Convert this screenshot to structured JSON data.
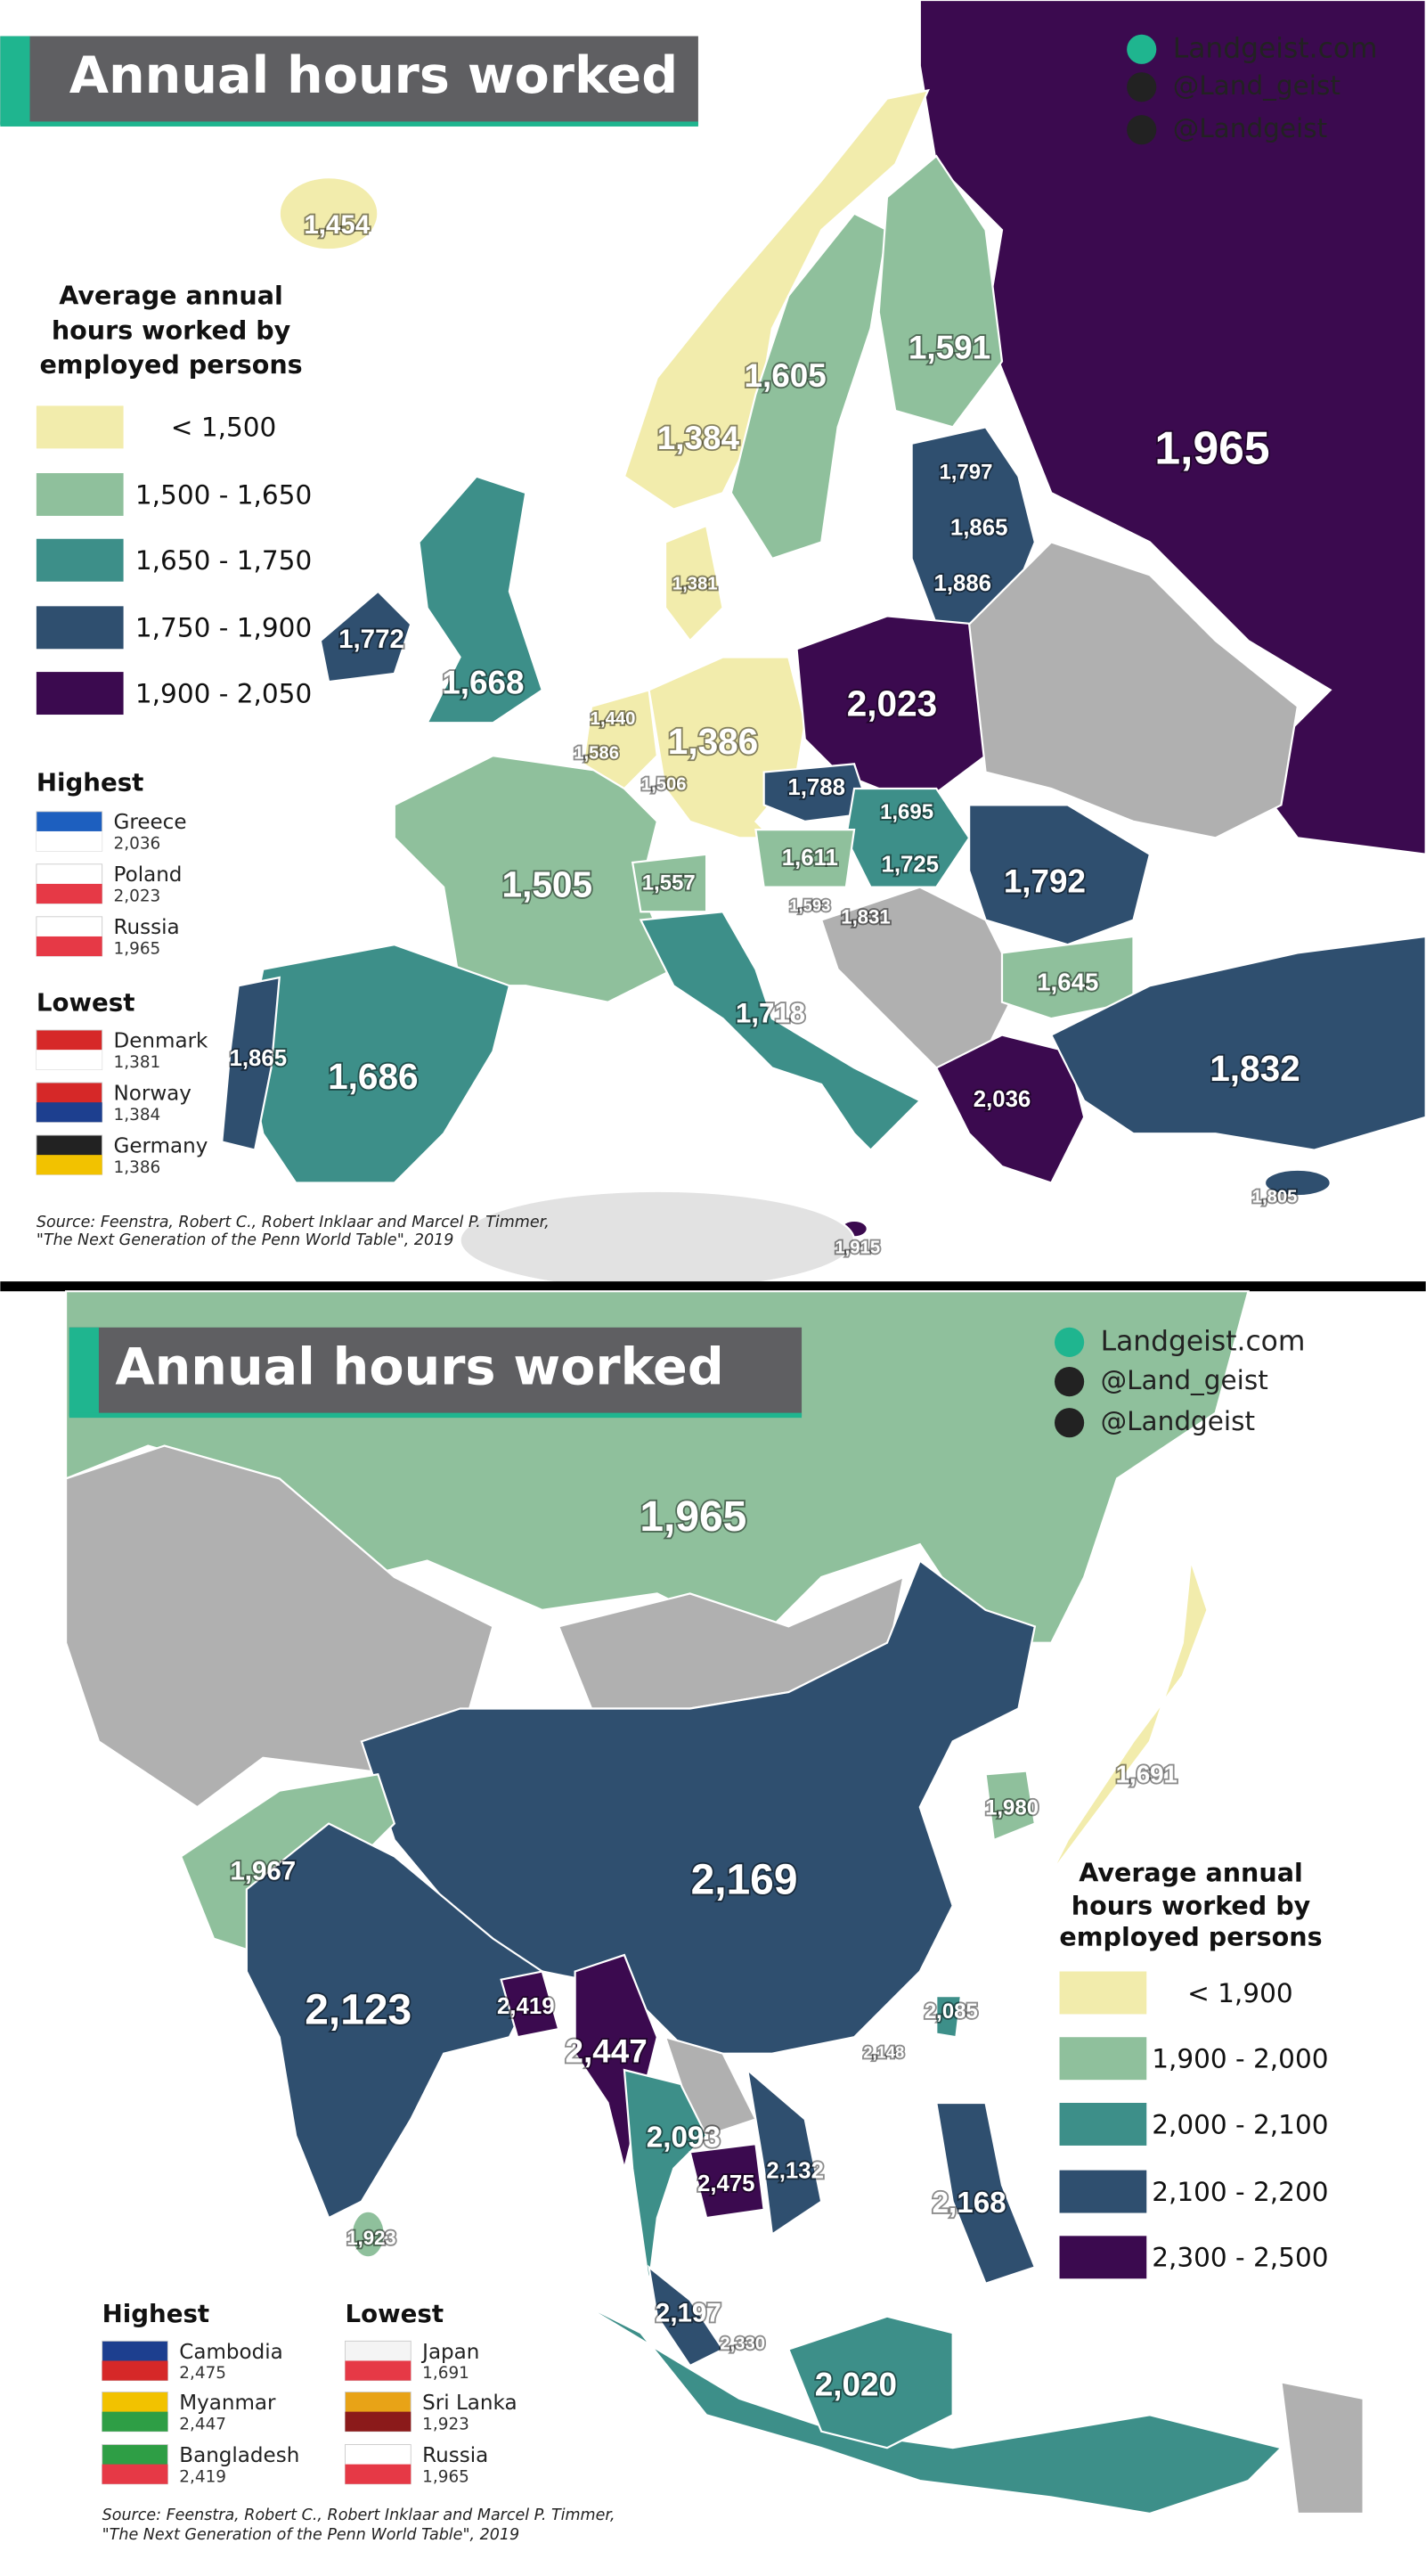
{
  "europe": {
    "title": "Annual hours worked",
    "links": [
      "Landgeist.com",
      "@Land_geist",
      "@Landgeist"
    ],
    "legend": {
      "title": [
        "Average annual",
        "hours worked by",
        "employed persons"
      ],
      "items": [
        {
          "label": "< 1,500",
          "color": "#f2ecac"
        },
        {
          "label": "1,500 - 1,650",
          "color": "#8fc09c"
        },
        {
          "label": "1,650 - 1,750",
          "color": "#3d8f89"
        },
        {
          "label": "1,750 - 1,900",
          "color": "#2f4f6f"
        },
        {
          "label": "1,900 - 2,050",
          "color": "#3b0a4f"
        }
      ]
    },
    "highest": {
      "title": "Highest",
      "items": [
        {
          "name": "Greece",
          "value": "2,036"
        },
        {
          "name": "Poland",
          "value": "2,023"
        },
        {
          "name": "Russia",
          "value": "1,965"
        }
      ]
    },
    "lowest": {
      "title": "Lowest",
      "items": [
        {
          "name": "Denmark",
          "value": "1,381"
        },
        {
          "name": "Norway",
          "value": "1,384"
        },
        {
          "name": "Germany",
          "value": "1,386"
        }
      ]
    },
    "source": [
      "Source: Feenstra, Robert C., Robert Inklaar and Marcel P. Timmer,",
      "\"The Next Generation of the Penn World Table\", 2019"
    ],
    "labels": [
      "1,454",
      "1,605",
      "1,591",
      "1,384",
      "1,965",
      "1,797",
      "1,865",
      "1,886",
      "1,381",
      "1,772",
      "1,668",
      "2,023",
      "1,440",
      "1,586",
      "1,386",
      "1,506",
      "1,788",
      "1,695",
      "1,611",
      "1,725",
      "1,792",
      "1,505",
      "1,557",
      "1,593",
      "1,831",
      "1,645",
      "1,718",
      "1,865",
      "1,686",
      "2,036",
      "1,832",
      "1,805",
      "1,915"
    ]
  },
  "asia": {
    "title": "Annual hours worked",
    "links": [
      "Landgeist.com",
      "@Land_geist",
      "@Landgeist"
    ],
    "legend": {
      "title": [
        "Average annual",
        "hours worked by",
        "employed persons"
      ],
      "items": [
        {
          "label": "< 1,900",
          "color": "#f2ecac"
        },
        {
          "label": "1,900 - 2,000",
          "color": "#8fc09c"
        },
        {
          "label": "2,000 - 2,100",
          "color": "#3d8f89"
        },
        {
          "label": "2,100 - 2,200",
          "color": "#2f4f6f"
        },
        {
          "label": "2,300 - 2,500",
          "color": "#3b0a4f"
        }
      ]
    },
    "highest": {
      "title": "Highest",
      "items": [
        {
          "name": "Cambodia",
          "value": "2,475"
        },
        {
          "name": "Myanmar",
          "value": "2,447"
        },
        {
          "name": "Bangladesh",
          "value": "2,419"
        }
      ]
    },
    "lowest": {
      "title": "Lowest",
      "items": [
        {
          "name": "Japan",
          "value": "1,691"
        },
        {
          "name": "Sri Lanka",
          "value": "1,923"
        },
        {
          "name": "Russia",
          "value": "1,965"
        }
      ]
    },
    "source": [
      "Source: Feenstra, Robert C., Robert Inklaar and Marcel P. Timmer,",
      "\"The Next Generation of the Penn World Table\", 2019"
    ],
    "labels": [
      "1,965",
      "1,691",
      "1,980",
      "1,967",
      "2,169",
      "2,123",
      "2,419",
      "2,447",
      "2,085",
      "2,148",
      "2,093",
      "2,132",
      "2,475",
      "2,168",
      "1,923",
      "2,197",
      "2,330",
      "2,020"
    ]
  }
}
